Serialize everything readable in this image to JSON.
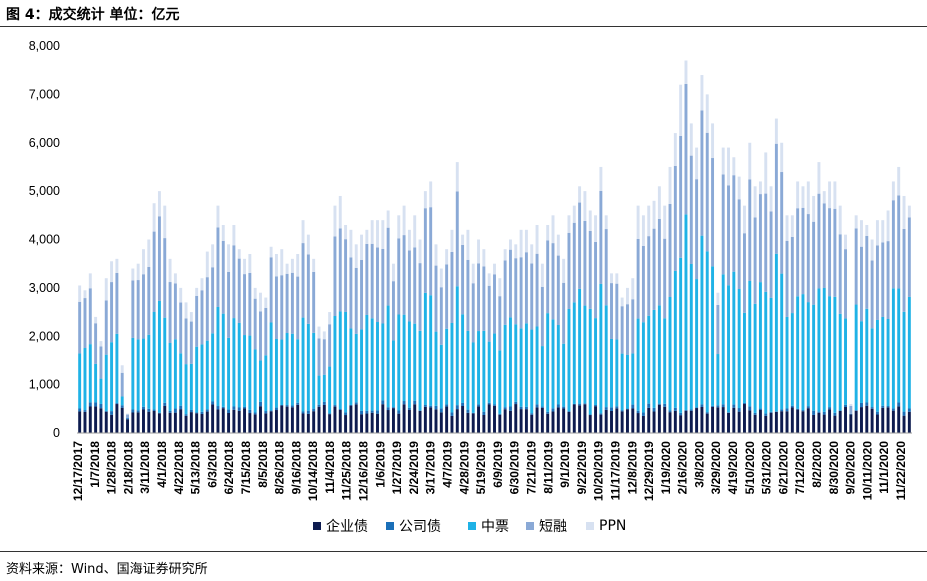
{
  "header": {
    "title": "图 4：成交统计 单位：亿元"
  },
  "footer": {
    "source": "资料来源：Wind、国海证券研究所"
  },
  "colors": {
    "企业债": "#0d1b4f",
    "公司债": "#1a6fb8",
    "中票": "#1fb2e6",
    "短融": "#8aa9d6",
    "PPN": "#d7e1f1"
  },
  "chart_data": {
    "type": "bar",
    "stacked": true,
    "yticks": [
      "0",
      "1,000",
      "2,000",
      "3,000",
      "4,000",
      "5,000",
      "6,000",
      "7,000",
      "8,000"
    ],
    "ylim": [
      0,
      8000
    ],
    "xtick_labels": [
      "12/17/2017",
      "1/7/2018",
      "1/28/2018",
      "2/18/2018",
      "3/11/2018",
      "4/1/2018",
      "4/22/2018",
      "5/13/2018",
      "6/3/2018",
      "6/24/2018",
      "7/15/2018",
      "8/5/2018",
      "8/26/2018",
      "9/16/2018",
      "10/14/2018",
      "11/4/2018",
      "11/25/2018",
      "12/16/2018",
      "1/6/2019",
      "1/27/2019",
      "2/24/2019",
      "3/17/2019",
      "4/7/2019",
      "4/28/2019",
      "5/19/2019",
      "6/9/2019",
      "6/30/2019",
      "7/21/2019",
      "8/11/2019",
      "9/1/2019",
      "9/22/2019",
      "10/20/2019",
      "11/17/2019",
      "12/8/2019",
      "12/29/2019",
      "1/19/2020",
      "2/16/2020",
      "3/8/2020",
      "3/29/2020",
      "4/19/2020",
      "5/10/2020",
      "5/31/2020",
      "6/21/2020",
      "7/12/2020",
      "8/2/2020",
      "8/30/2020",
      "9/20/2020",
      "10/11/2020",
      "11/1/2020",
      "11/22/2020"
    ],
    "series_names": [
      "企业债",
      "公司债",
      "中票",
      "短融",
      "PPN"
    ],
    "totals": [
      3050,
      2950,
      3300,
      2400,
      1900,
      3200,
      3550,
      3600,
      1400,
      400,
      3400,
      3500,
      3800,
      4000,
      4750,
      5000,
      4700,
      3600,
      3300,
      3000,
      2700,
      2500,
      3000,
      3200,
      3750,
      3900,
      4700,
      4300,
      3900,
      4300,
      3800,
      3600,
      3700,
      3000,
      2900,
      2800,
      3850,
      3700,
      3800,
      3500,
      3600,
      3700,
      4400,
      4100,
      3600,
      2200,
      2100,
      2500,
      4700,
      4900,
      4300,
      4200,
      3900,
      4100,
      4200,
      4400,
      4400,
      4400,
      4600,
      3500,
      4500,
      4700,
      4200,
      4500,
      4000,
      5000,
      5200,
      3900,
      3400,
      3800,
      4200,
      5600,
      4100,
      4200,
      3500,
      4000,
      3800,
      3300,
      3500,
      3200,
      3800,
      4000,
      3900,
      4200,
      4200,
      3900,
      4300,
      3500,
      4300,
      4500,
      4100,
      3600,
      4500,
      4700,
      5100,
      5000,
      4600,
      4500,
      5500,
      4500,
      3300,
      3300,
      2800,
      3000,
      3200,
      4700,
      4500,
      4700,
      4800,
      5100,
      4700,
      5500,
      6200,
      7200,
      7700,
      6400,
      5900,
      7400,
      7000,
      6400,
      2900,
      5900,
      5900,
      5700,
      5300,
      4700,
      6000,
      5100,
      5200,
      5800,
      5100,
      6500,
      6000,
      4500,
      4500,
      5200,
      5100,
      5200,
      4900,
      5600,
      5000,
      5200,
      5200,
      4700,
      4100,
      600,
      4500,
      4400,
      4300,
      4000,
      4400,
      4400,
      4600,
      5200,
      5500,
      4900,
      4700
    ]
  }
}
